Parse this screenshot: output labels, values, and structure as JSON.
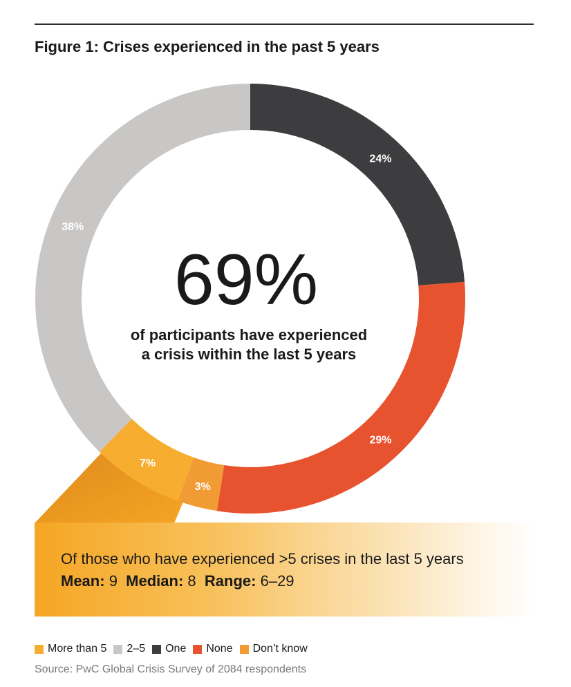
{
  "figure": {
    "title": "Figure 1: Crises experienced in the past 5 years"
  },
  "center": {
    "headline": "69%",
    "line1": "of participants have experienced",
    "line2": "a crisis within the last 5 years"
  },
  "chart_data": {
    "type": "pie",
    "donut": true,
    "unit": "%",
    "slices": [
      {
        "label": "One",
        "value": 24,
        "display": "24%",
        "color": "#3d3d3f",
        "label_color": "#ffffff"
      },
      {
        "label": "None",
        "value": 29,
        "display": "29%",
        "color": "#e8532f",
        "label_color": "#ffffff"
      },
      {
        "label": "Don't know",
        "value": 3,
        "display": "3%",
        "color": "#f19b35",
        "label_color": "#ffffff"
      },
      {
        "label": "More than 5",
        "value": 7,
        "display": "7%",
        "color": "#f7ae30",
        "label_color": "#ffffff"
      },
      {
        "label": "2–5",
        "value": 38,
        "display": "38%",
        "color": "#c8c7c6",
        "label_color": "#ffffff"
      }
    ]
  },
  "callout": {
    "line1": "Of those who have experienced >5 crises in the last 5 years",
    "mean_label": "Mean:",
    "mean_value": "9",
    "median_label": "Median:",
    "median_value": "8",
    "range_label": "Range:",
    "range_value": "6–29"
  },
  "legend": [
    {
      "label": "More than 5",
      "color": "#f7ae30"
    },
    {
      "label": "2–5",
      "color": "#c8c7c6"
    },
    {
      "label": "One",
      "color": "#3d3d3f"
    },
    {
      "label": "None",
      "color": "#e8532f"
    },
    {
      "label": "Don’t know",
      "color": "#f19b35"
    }
  ],
  "source": "Source: PwC Global Crisis Survey of 2084 respondents"
}
